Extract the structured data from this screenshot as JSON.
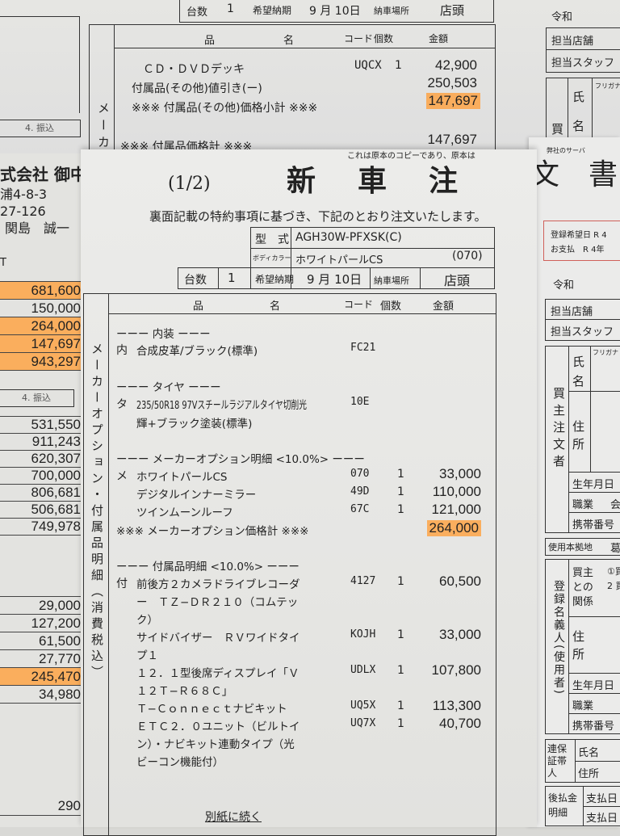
{
  "back_sheet": {
    "top_row": {
      "count_label": "台数",
      "count": "1",
      "delivery_label": "希望納期",
      "delivery": "9 月 10日",
      "place_label": "納車場所",
      "place": "店頭"
    },
    "header": {
      "name_a": "品",
      "name_b": "名",
      "code": "コード",
      "qty": "個数",
      "amount": "金額"
    },
    "side_label": "メーカ",
    "items": [
      {
        "name": "ＣＤ・ＤＶＤデッキ",
        "code": "UQCX",
        "qty": "1",
        "amount": "42,900"
      },
      {
        "name": "付属品(その他)値引き(ー)",
        "code": "",
        "qty": "",
        "amount": "250,503"
      },
      {
        "name": "※※※ 付属品(その他)価格小計 ※※※",
        "code": "",
        "qty": "",
        "amount": "147,697",
        "highlight": true
      },
      {
        "name": "※※※ 付属品価格計 ※※※",
        "code": "",
        "qty": "",
        "amount": "147,697"
      }
    ],
    "left_label": "4. 振込",
    "right": {
      "era": "令和",
      "store": "担当店舗",
      "staff": "担当スタッフ",
      "buyer": "買",
      "name1": "氏",
      "name2": "名",
      "furigana": "フリガナ"
    }
  },
  "front_sheet": {
    "page": "(1/2)",
    "title": "新　車　注",
    "copy_note": "これは原本のコピーであり、原本は",
    "addressee": [
      "式会社 御中",
      "浦4-8-3",
      "27-126",
      "関島　誠一"
    ],
    "left_partial": "T",
    "subtitle": "裏面記載の特約事項に基づき、下記のとおり注文いたします。",
    "model_label": "型　式",
    "model": "AGH30W-PFXSK(C)",
    "color_label": "ボディカラー",
    "color": "ホワイトパールCS",
    "color_code": "(070)",
    "count_label": "台数",
    "count": "1",
    "delivery_label": "希望納期",
    "delivery": "9 月 10日",
    "place_label": "納車場所",
    "place": "店頭",
    "header": {
      "name_a": "品",
      "name_b": "名",
      "code": "コード",
      "qty": "個数",
      "amount": "金額"
    },
    "side_label": "メーカーオプション・付属品明細（消費税込）",
    "lines": [
      {
        "mark": "",
        "text": "ーーー 内装 ーーー",
        "code": "",
        "qty": "",
        "amount": ""
      },
      {
        "mark": "内",
        "text": "合成皮革/ブラック(標準)",
        "code": "FC21",
        "qty": "",
        "amount": ""
      },
      {
        "mark": "",
        "text": "ーーー タイヤ ーーー",
        "code": "",
        "qty": "",
        "amount": ""
      },
      {
        "mark": "タ",
        "text": "235/50R18 97Vスチールラジアルタイヤ切削光",
        "code": "10E",
        "qty": "",
        "amount": ""
      },
      {
        "mark": "",
        "text": "輝+ブラック塗装(標準)",
        "code": "",
        "qty": "",
        "amount": ""
      },
      {
        "mark": "",
        "text": "ーーー メーカーオプション明細 <10.0%> ーーー",
        "code": "",
        "qty": "",
        "amount": ""
      },
      {
        "mark": "メ",
        "text": "ホワイトパールCS",
        "code": "070",
        "qty": "1",
        "amount": "33,000"
      },
      {
        "mark": "",
        "text": "デジタルインナーミラー",
        "code": "49D",
        "qty": "1",
        "amount": "110,000"
      },
      {
        "mark": "",
        "text": "ツインムーンルーフ",
        "code": "67C",
        "qty": "1",
        "amount": "121,000"
      },
      {
        "mark": "",
        "text": "※※※ メーカーオプション価格計 ※※※",
        "code": "",
        "qty": "",
        "amount": "264,000",
        "highlight": true
      },
      {
        "mark": "",
        "text": "ーーー 付属品明細 <10.0%> ーーー",
        "code": "",
        "qty": "",
        "amount": ""
      },
      {
        "mark": "付",
        "text": "前後方２カメラドライブレコーダ",
        "code": "4127",
        "qty": "1",
        "amount": "60,500"
      },
      {
        "mark": "",
        "text": "ー　ＴＺ−ＤＲ２１０（コムテッ",
        "code": "",
        "qty": "",
        "amount": ""
      },
      {
        "mark": "",
        "text": "ク）",
        "code": "",
        "qty": "",
        "amount": ""
      },
      {
        "mark": "",
        "text": "サイドバイザー　ＲＶワイドタイ",
        "code": "KOJH",
        "qty": "1",
        "amount": "33,000"
      },
      {
        "mark": "",
        "text": "プ１",
        "code": "",
        "qty": "",
        "amount": ""
      },
      {
        "mark": "",
        "text": "１２．１型後席ディスプレイ「Ｖ",
        "code": "UDLX",
        "qty": "1",
        "amount": "107,800"
      },
      {
        "mark": "",
        "text": "１２Ｔ−Ｒ６８Ｃ」",
        "code": "",
        "qty": "",
        "amount": ""
      },
      {
        "mark": "",
        "text": "Ｔ−Ｃｏｎｎｅｃｔナビキット",
        "code": "UQ5X",
        "qty": "1",
        "amount": "113,300"
      },
      {
        "mark": "",
        "text": "ＥＴＣ２．０ユニット（ビルトイ",
        "code": "UQ7X",
        "qty": "1",
        "amount": "40,700"
      },
      {
        "mark": "",
        "text": "ン）・ナビキット連動タイプ（光",
        "code": "",
        "qty": "",
        "amount": ""
      },
      {
        "mark": "",
        "text": "ビーコン機能付）",
        "code": "",
        "qty": "",
        "amount": ""
      }
    ],
    "continued": "別紙に続く"
  },
  "left_sheet": {
    "totals_top": [
      {
        "value": "681,600",
        "highlight": true
      },
      {
        "value": "150,000",
        "highlight": false
      },
      {
        "value": "264,000",
        "highlight": true
      },
      {
        "value": "147,697",
        "highlight": true
      },
      {
        "value": "943,297",
        "highlight": true
      }
    ],
    "transfer_label": "4. 振込",
    "totals_mid": [
      "531,550",
      "911,243",
      "620,307",
      "700,000",
      "806,681",
      "506,681",
      "749,978"
    ],
    "totals_low": [
      {
        "value": "29,000",
        "highlight": false
      },
      {
        "value": "127,200",
        "highlight": false
      },
      {
        "value": "61,500",
        "highlight": false
      },
      {
        "value": "27,770",
        "highlight": false
      },
      {
        "value": "245,470",
        "highlight": true
      },
      {
        "value": "34,980",
        "highlight": false
      }
    ],
    "bottom_value": "290"
  },
  "right_sheet": {
    "title": "文　書",
    "server_note": "弊社のサーバ",
    "reg_date": "登録希望日 R 4",
    "payment": "お支払　R 4年",
    "era": "令和",
    "store": "担当店舗",
    "staff": "担当スタッフ",
    "buyer_label": "買主注文者",
    "name1": "氏",
    "name2": "名",
    "furigana": "フリガナ",
    "addr1": "住",
    "addr2": "所",
    "birth": "生年月日",
    "job": "職業",
    "job_value": "会",
    "mobile": "携帯番号",
    "base": "使用本拠地",
    "base_value": "葛",
    "registrant_label": "登録名義人(使用者)",
    "relation": "買主との関係",
    "relation_opt1": "①買",
    "relation_opt2": "2 買",
    "guarantor_label": "連保証帯人",
    "g_name": "氏名",
    "g_addr": "住所",
    "deferred_label": "後払金明細",
    "pay_date": "支払日"
  },
  "colors": {
    "highlight": "#ffa03c",
    "red_box": "#d0605a",
    "ink": "#222222",
    "paper": "#e6e6e3"
  }
}
